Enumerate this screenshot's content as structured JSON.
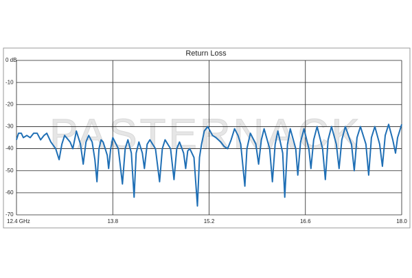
{
  "chart_data": {
    "type": "line",
    "title": "Return Loss",
    "watermark": "PASTERNACK",
    "x": [
      12.4,
      12.43,
      12.47,
      12.5,
      12.55,
      12.6,
      12.65,
      12.7,
      12.75,
      12.8,
      12.84,
      12.9,
      12.97,
      13.02,
      13.06,
      13.1,
      13.18,
      13.22,
      13.27,
      13.33,
      13.37,
      13.41,
      13.45,
      13.5,
      13.54,
      13.57,
      13.6,
      13.63,
      13.66,
      13.72,
      13.74,
      13.77,
      13.8,
      13.88,
      13.94,
      13.98,
      14.02,
      14.07,
      14.11,
      14.14,
      14.18,
      14.23,
      14.26,
      14.3,
      14.34,
      14.42,
      14.48,
      14.52,
      14.56,
      14.64,
      14.69,
      14.73,
      14.77,
      14.83,
      14.86,
      14.89,
      14.92,
      14.98,
      15.03,
      15.06,
      15.09,
      15.13,
      15.18,
      15.25,
      15.3,
      15.37,
      15.42,
      15.47,
      15.52,
      15.57,
      15.62,
      15.66,
      15.72,
      15.75,
      15.8,
      15.88,
      15.92,
      15.96,
      16.0,
      16.08,
      16.12,
      16.16,
      16.2,
      16.27,
      16.3,
      16.34,
      16.38,
      16.46,
      16.49,
      16.53,
      16.58,
      16.65,
      16.68,
      16.72,
      16.77,
      16.85,
      16.89,
      16.93,
      16.98,
      17.05,
      17.09,
      17.13,
      17.18,
      17.27,
      17.31,
      17.35,
      17.4,
      17.48,
      17.52,
      17.56,
      17.61,
      17.68,
      17.72,
      17.76,
      17.81,
      17.87,
      17.91,
      17.94,
      18.0
    ],
    "values": [
      -36,
      -33,
      -33,
      -35,
      -34,
      -35,
      -33,
      -33,
      -36,
      -34,
      -33,
      -37,
      -40,
      -45,
      -38,
      -34,
      -37,
      -40,
      -32,
      -38,
      -47,
      -37,
      -34,
      -37,
      -45,
      -55,
      -40,
      -36,
      -37,
      -43,
      -49,
      -40,
      -35,
      -40,
      -56,
      -40,
      -36,
      -42,
      -62,
      -42,
      -37,
      -42,
      -49,
      -38,
      -36,
      -40,
      -55,
      -40,
      -36,
      -40,
      -54,
      -40,
      -37,
      -42,
      -49,
      -41,
      -40,
      -44,
      -66,
      -44,
      -38,
      -32,
      -30,
      -34,
      -35,
      -37,
      -39,
      -40,
      -36,
      -31,
      -34,
      -38,
      -57,
      -40,
      -33,
      -38,
      -47,
      -36,
      -31,
      -40,
      -55,
      -38,
      -32,
      -42,
      -62,
      -38,
      -31,
      -40,
      -52,
      -37,
      -31,
      -40,
      -49,
      -36,
      -30,
      -40,
      -54,
      -36,
      -30,
      -38,
      -49,
      -36,
      -30,
      -38,
      -50,
      -35,
      -30,
      -38,
      -52,
      -35,
      -30,
      -38,
      -48,
      -34,
      -29,
      -36,
      -42,
      -35,
      -29
    ],
    "color": "#1f6fb5",
    "xlim": [
      12.4,
      18.0
    ],
    "xticks": [
      {
        "value": 12.4,
        "label": "12.4 GHz"
      },
      13.8,
      15.2,
      16.6,
      {
        "value": 18.0,
        "label": "18.0"
      }
    ],
    "ylim": [
      -70,
      0
    ],
    "yticks": [
      {
        "value": 0,
        "label": "0 dB"
      },
      -10,
      -20,
      -30,
      -40,
      -50,
      -60,
      -70
    ],
    "grid": true
  }
}
